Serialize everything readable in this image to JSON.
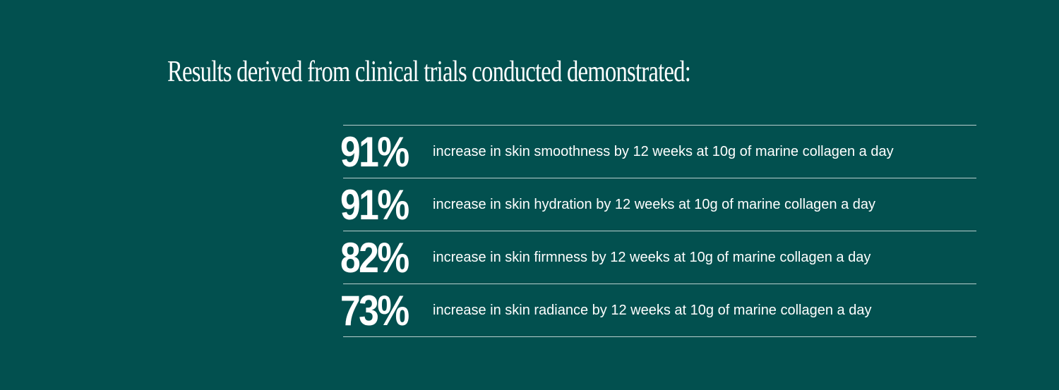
{
  "heading": "Results derived from clinical trials conducted demonstrated:",
  "stats": [
    {
      "value": "91%",
      "text": "increase in skin smoothness by 12 weeks at 10g of marine collagen a day"
    },
    {
      "value": "91%",
      "text": "increase in skin hydration by 12 weeks at 10g of marine collagen a day"
    },
    {
      "value": "82%",
      "text": "increase in skin firmness by 12 weeks at 10g of marine collagen a day"
    },
    {
      "value": "73%",
      "text": "increase in skin radiance by 12 weeks at 10g of marine collagen a day"
    }
  ]
}
